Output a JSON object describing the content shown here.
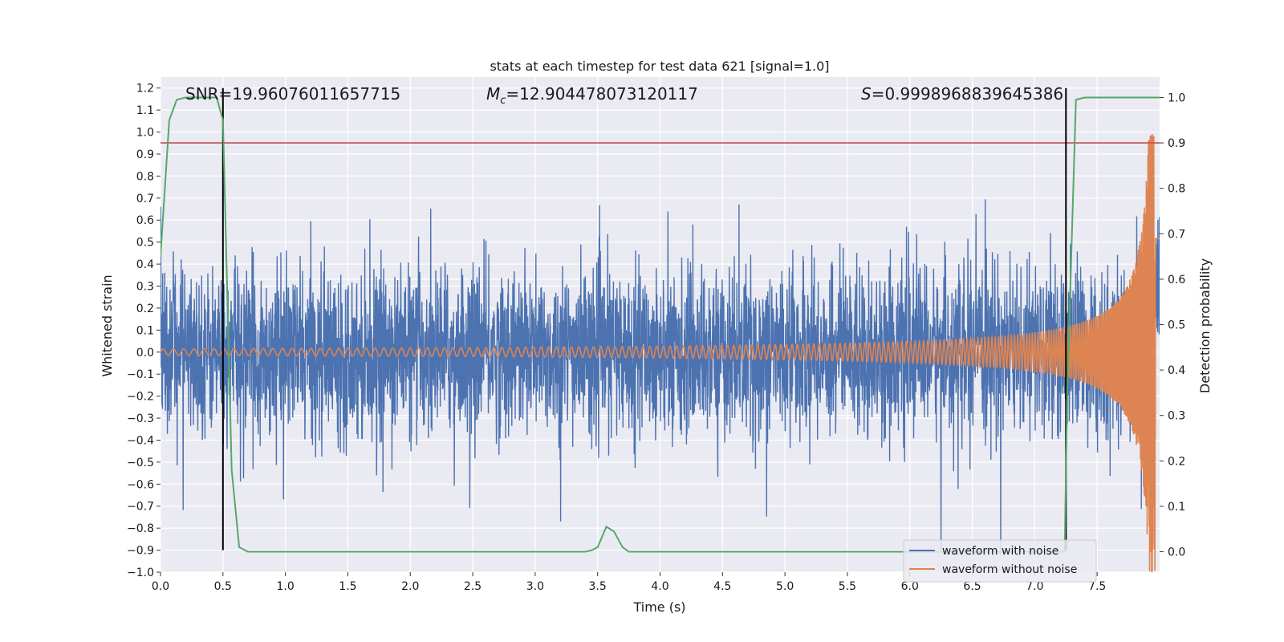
{
  "chart_data": {
    "type": "line",
    "title": "stats at each timestep for test data 621 [signal=1.0]",
    "xlabel": "Time (s)",
    "ylabel": "Whitened strain",
    "ylabel_right": "Detection probability",
    "xlim": [
      0.0,
      8.0
    ],
    "ylim": [
      -1.0,
      1.25
    ],
    "ylim_right": [
      -0.045,
      1.045
    ],
    "x_ticks": [
      "0.0",
      "0.5",
      "1.0",
      "1.5",
      "2.0",
      "2.5",
      "3.0",
      "3.5",
      "4.0",
      "4.5",
      "5.0",
      "5.5",
      "6.0",
      "6.5",
      "7.0",
      "7.5"
    ],
    "y_ticks": [
      "1.2",
      "1.1",
      "1.0",
      "0.9",
      "0.8",
      "0.7",
      "0.6",
      "0.5",
      "0.4",
      "0.3",
      "0.2",
      "0.1",
      "0.0",
      "−0.1",
      "−0.2",
      "−0.3",
      "−0.4",
      "−0.5",
      "−0.6",
      "−0.7",
      "−0.8",
      "−0.9",
      "−1.0"
    ],
    "y_ticks_right": [
      "1.0",
      "0.9",
      "0.8",
      "0.7",
      "0.6",
      "0.5",
      "0.4",
      "0.3",
      "0.2",
      "0.1",
      "0.0"
    ],
    "grid": true,
    "legend_position": "lower-right",
    "annotations": {
      "snr": "SNR=19.96076011657715",
      "mc_symbol": "M",
      "mc_sub": "c",
      "mc_value": "=12.904478073120117",
      "s_symbol": "S",
      "s_value": "=0.9998968839645386"
    },
    "series": [
      {
        "name": "waveform with noise",
        "color": "#4c72b0",
        "description_values": {
          "noise_amplitude_typical": 0.18,
          "noise_peak_max": 0.66,
          "noise_trough_min": -0.9
        }
      },
      {
        "name": "waveform without noise",
        "color": "#dd8452",
        "chirp": {
          "t_start": 0.0,
          "t_merge": 7.97,
          "amp_start": 0.015,
          "amp_end": 1.0,
          "f_start": 9,
          "f_end": 60
        }
      },
      {
        "name": "detection probability",
        "color": "#55a868",
        "axis": "right",
        "x": [
          0.0,
          0.07,
          0.13,
          0.2,
          0.3,
          0.45,
          0.5,
          0.57,
          0.63,
          0.7,
          3.4,
          3.45,
          3.5,
          3.57,
          3.63,
          3.7,
          3.75,
          7.24,
          7.26,
          7.33,
          7.4,
          8.0
        ],
        "y": [
          0.65,
          0.95,
          0.995,
          1.0,
          1.0,
          1.0,
          0.95,
          0.18,
          0.01,
          0.0,
          0.0,
          0.003,
          0.01,
          0.055,
          0.045,
          0.01,
          0.0,
          0.0,
          0.35,
          0.995,
          1.0,
          1.0
        ]
      }
    ],
    "threshold_line": {
      "value": 0.9,
      "axis": "right",
      "color": "#c44e52"
    },
    "vertical_markers": [
      {
        "x": 0.5,
        "y_from": -0.9,
        "y_to": 1.2,
        "color": "#000000"
      },
      {
        "x": 7.25,
        "y_from": -0.9,
        "y_to": 1.2,
        "color": "#000000"
      }
    ]
  }
}
